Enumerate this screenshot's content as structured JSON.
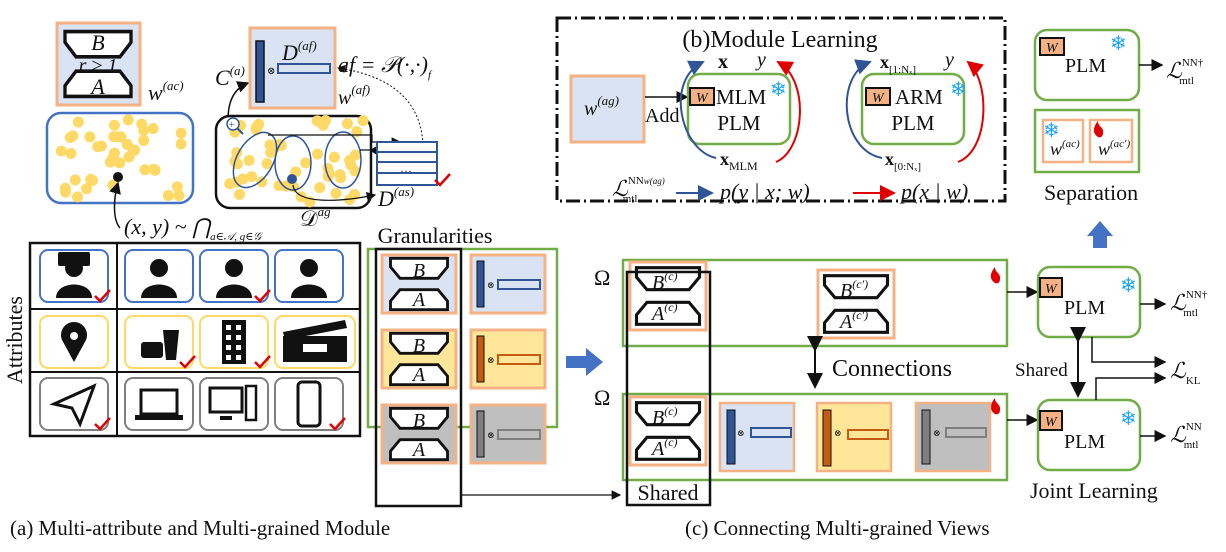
{
  "colors": {
    "green_border": "#70ad47",
    "blue_border": "#4472c4",
    "orange_border": "#f4b183",
    "light_blue": "#dae3f3",
    "light_yellow": "#ffe699",
    "light_gray": "#bfbfbf",
    "dark_blue": "#2f5597",
    "orange_bar": "#c55a11",
    "gray_bar": "#7f7f7f",
    "dot_yellow": "#ffd966",
    "red_check": "#e00000",
    "snow_blue": "#1aa3ff",
    "arrow_blue": "#4472c4"
  },
  "panel_a": {
    "caption": "(a) Multi-attribute and Multi-grained Module",
    "lora_B": "B",
    "lora_A": "A",
    "rank": "r ≥ 1",
    "w_ac": "w",
    "w_ac_sup": "(ac)",
    "C_a": "C",
    "C_a_sup": "(a)",
    "D_af": "D",
    "D_af_sup": "(af)",
    "af_eq": "af = 𝒫(·,·)",
    "af_eq_sub": "f",
    "w_af": "w",
    "w_af_sup": "(af)",
    "table_dots": "…",
    "D_as": "D",
    "D_as_sup": "(as)",
    "sample": "(x, y) ~ ⋂",
    "sample_sub": "a∈𝒜, g∈𝒢",
    "D_ag": "𝒟",
    "D_ag_sup": "ag",
    "attributes_label": "Attributes",
    "granularities_label": "Granularities",
    "attribute_icons": [
      [
        "chat-group-icon",
        "man-icon",
        "businessman-icon",
        "woman-icon"
      ],
      [
        "location-pin-icon",
        "fast-food-icon",
        "building-icon",
        "clapperboard-icon"
      ],
      [
        "paper-plane-icon",
        "laptop-icon",
        "desktop-computer-icon",
        "smartphone-icon"
      ]
    ],
    "checked": [
      [
        true,
        false,
        true,
        false
      ],
      [
        false,
        true,
        true,
        false
      ],
      [
        true,
        false,
        false,
        true
      ]
    ]
  },
  "panel_b": {
    "title": "(b)Module Learning",
    "w_ag": "w",
    "w_ag_sup": "(ag)",
    "add": "Add",
    "W": "W",
    "mlm": "MLM",
    "arm": "ARM",
    "plm": "PLM",
    "x": "x",
    "y": "y",
    "x_mlm": "x",
    "x_mlm_sub": "MLM",
    "x_1n": "x",
    "x_1n_sub": "[1:Nₓ]",
    "x_0n": "x",
    "x_0n_sub": "[0:Nₓ]",
    "loss": "ℒ",
    "loss_sup": "NN",
    "loss_sup2": "w(ag)",
    "loss_sub": "mtl",
    "p_cond": "p(y | x; w)",
    "p_joint": "p(x | w)"
  },
  "panel_c": {
    "caption": "(c) Connecting Multi-grained Views",
    "omega": "Ω",
    "B_c": "B",
    "B_c_sup": "(c)",
    "A_c": "A",
    "A_c_sup": "(c)",
    "B_cp": "B",
    "B_cp_sup": "(c′)",
    "A_cp": "A",
    "A_cp_sup": "(c′)",
    "connections": "Connections",
    "shared": "Shared",
    "plm": "PLM",
    "W": "W",
    "shared_plm": "Shared",
    "loss": "ℒ",
    "loss_sup_dag": "NN†",
    "loss_sup": "NN",
    "loss_sub": "mtl",
    "loss_kl_sub": "KL",
    "joint_learning": "Joint Learning",
    "separation": "Separation",
    "w_ac": "w",
    "w_ac_sup": "(ac)",
    "w_acp_sup": "(ac′)"
  }
}
